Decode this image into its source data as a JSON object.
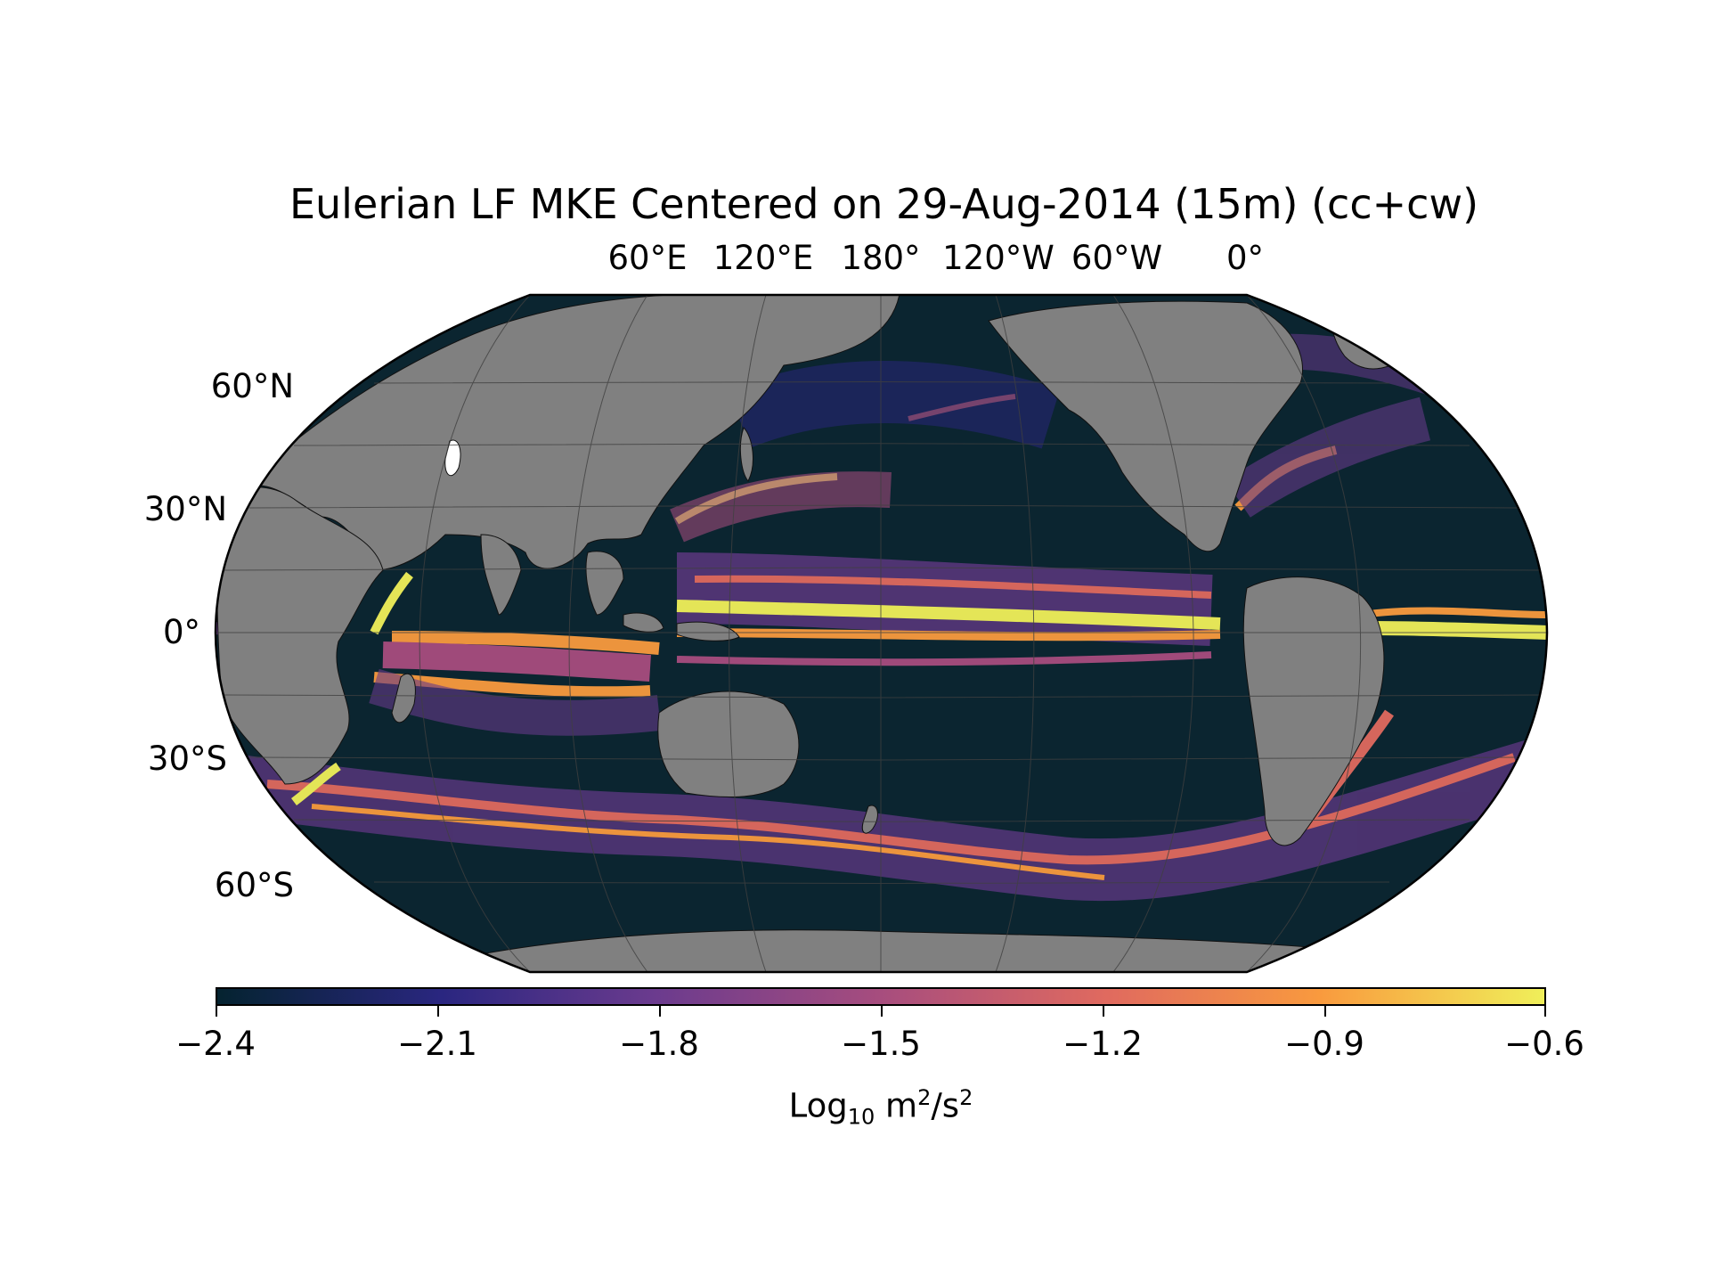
{
  "title": "Eulerian LF MKE Centered on 29-Aug-2014 (15m) (cc+cw)",
  "map": {
    "projection": "robinson",
    "central_longitude": "180°",
    "land_color": "#808080",
    "ocean_low_color": "#0b2530",
    "gridlines": true,
    "lon_labels": [
      "60°E",
      "120°E",
      "180°",
      "120°W",
      "60°W",
      "0°"
    ],
    "lat_labels": [
      "60°N",
      "30°N",
      "0°",
      "30°S",
      "60°S"
    ]
  },
  "colorbar": {
    "colormap": "thermal (dark blue → purple → orange → yellow)",
    "colors": [
      "#04232f",
      "#2a2680",
      "#6b3b8e",
      "#a74d7e",
      "#e06a5f",
      "#f99a3e",
      "#f0f05a"
    ],
    "ticks": [
      "−2.4",
      "−2.1",
      "−1.8",
      "−1.5",
      "−1.2",
      "−0.9",
      "−0.6"
    ],
    "tick_values": [
      -2.4,
      -2.1,
      -1.8,
      -1.5,
      -1.2,
      -0.9,
      -0.6
    ],
    "range": [
      -2.4,
      -0.6
    ],
    "label_main": "Log",
    "label_sub": "10",
    "label_rest": " m",
    "label_sup1": "2",
    "label_mid": "/s",
    "label_sup2": "2"
  }
}
